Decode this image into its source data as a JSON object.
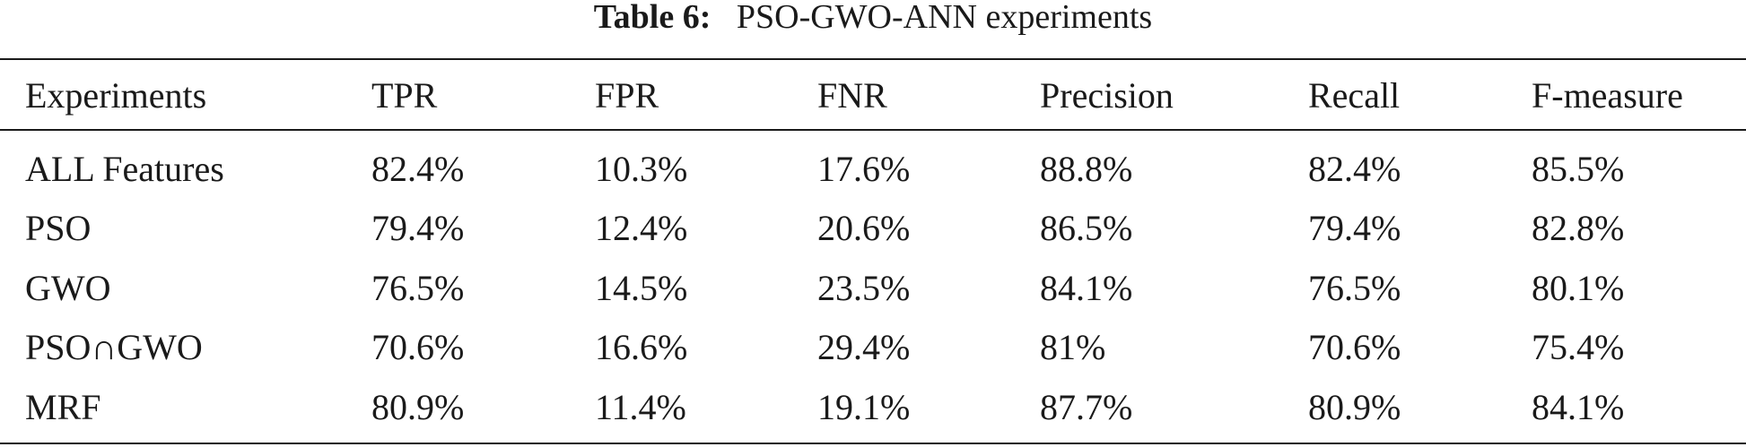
{
  "caption": {
    "label": "Table 6:",
    "text": "PSO-GWO-ANN experiments"
  },
  "table": {
    "headers": [
      "Experiments",
      "TPR",
      "FPR",
      "FNR",
      "Precision",
      "Recall",
      "F-measure"
    ],
    "rows": [
      [
        "ALL Features",
        "82.4%",
        "10.3%",
        "17.6%",
        "88.8%",
        "82.4%",
        "85.5%"
      ],
      [
        "PSO",
        "79.4%",
        "12.4%",
        "20.6%",
        "86.5%",
        "79.4%",
        "82.8%"
      ],
      [
        "GWO",
        "76.5%",
        "14.5%",
        "23.5%",
        "84.1%",
        "76.5%",
        "80.1%"
      ],
      [
        "PSO∩GWO",
        "70.6%",
        "16.6%",
        "29.4%",
        "81%",
        "70.6%",
        "75.4%"
      ],
      [
        "MRF",
        "80.9%",
        "11.4%",
        "19.1%",
        "87.7%",
        "80.9%",
        "84.1%"
      ]
    ]
  }
}
